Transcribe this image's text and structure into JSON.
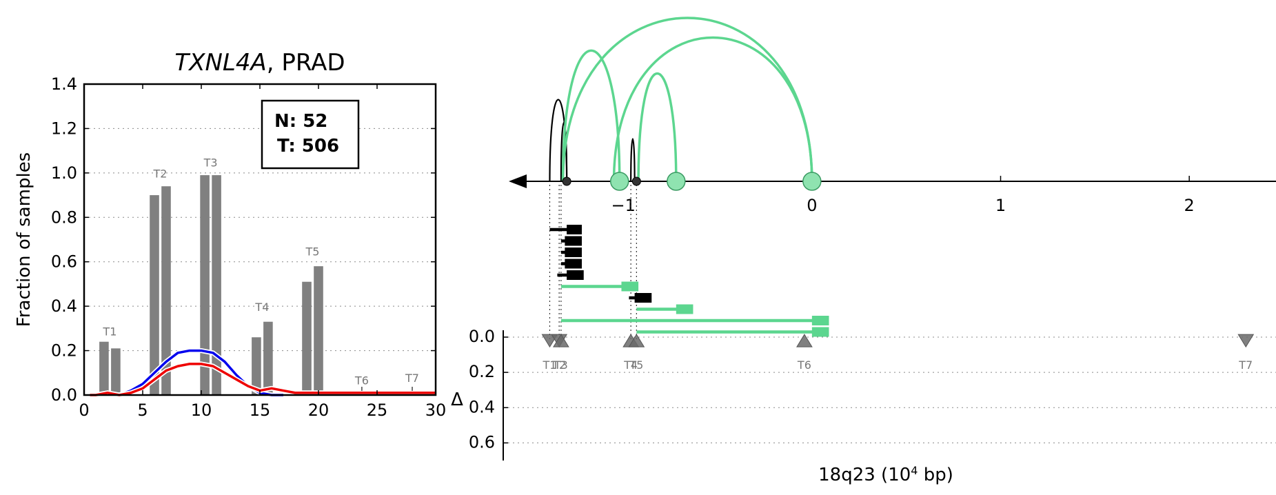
{
  "chart_data": [
    {
      "type": "bar",
      "title_gene": "TXNL4A",
      "title_rest": ", PRAD",
      "ylabel": "Fraction of samples",
      "xlim": [
        0,
        30
      ],
      "ylim": [
        0,
        1.4
      ],
      "xticks": [
        "0",
        "5",
        "10",
        "15",
        "20",
        "25",
        "30"
      ],
      "yticks": [
        "0.0",
        "0.2",
        "0.4",
        "0.6",
        "0.8",
        "1.0",
        "1.2",
        "1.4"
      ],
      "grid": true,
      "legend": {
        "n_label": "N: 52",
        "t_label": "T: 506",
        "placement": "top-right"
      },
      "bars": [
        {
          "x": 1.7,
          "value": 0.24
        },
        {
          "x": 2.7,
          "value": 0.21
        },
        {
          "x": 6.0,
          "value": 0.9
        },
        {
          "x": 7.0,
          "value": 0.94
        },
        {
          "x": 10.3,
          "value": 0.99
        },
        {
          "x": 11.3,
          "value": 0.99
        },
        {
          "x": 14.7,
          "value": 0.26
        },
        {
          "x": 15.7,
          "value": 0.33
        },
        {
          "x": 19.0,
          "value": 0.51
        },
        {
          "x": 20.0,
          "value": 0.58
        }
      ],
      "bar_color": "#808080",
      "group_labels": [
        {
          "label": "T1",
          "x": 2.2,
          "y": 0.25
        },
        {
          "label": "T2",
          "x": 6.5,
          "y": 0.96
        },
        {
          "label": "T3",
          "x": 10.8,
          "y": 1.01
        },
        {
          "label": "T4",
          "x": 15.2,
          "y": 0.36
        },
        {
          "label": "T5",
          "x": 19.5,
          "y": 0.61
        },
        {
          "label": "T6",
          "x": 23.7,
          "y": 0.03
        },
        {
          "label": "T7",
          "x": 28.0,
          "y": 0.04
        }
      ],
      "series": [
        {
          "color": "#0000ee",
          "x": [
            0.5,
            1,
            2,
            3,
            4,
            5,
            6,
            7,
            8,
            9,
            10,
            11,
            12,
            13,
            14,
            15,
            16,
            17
          ],
          "values": [
            0,
            0,
            0.01,
            0,
            0.02,
            0.05,
            0.1,
            0.15,
            0.19,
            0.2,
            0.2,
            0.19,
            0.15,
            0.09,
            0.04,
            0.01,
            0,
            0
          ]
        },
        {
          "color": "#ee0000",
          "x": [
            0.5,
            1,
            2,
            3,
            4,
            5,
            6,
            7,
            8,
            9,
            10,
            11,
            12,
            13,
            14,
            15,
            16,
            17,
            18,
            19,
            20,
            21,
            22,
            23,
            24,
            25,
            26,
            27,
            28,
            29,
            30
          ],
          "values": [
            0,
            0,
            0.01,
            0,
            0.01,
            0.03,
            0.07,
            0.11,
            0.13,
            0.14,
            0.14,
            0.13,
            0.1,
            0.07,
            0.04,
            0.02,
            0.03,
            0.02,
            0.01,
            0.01,
            0.01,
            0.01,
            0.01,
            0.01,
            0.01,
            0.01,
            0.01,
            0.01,
            0.01,
            0.01,
            0.01
          ]
        }
      ]
    },
    {
      "type": "scatter",
      "xlabel": "18q23 (10",
      "xlabel_sup": "4",
      "xlabel_tail": " bp)",
      "delta_label": "Δ",
      "xlim": [
        -1.6,
        2.5
      ],
      "xticks": [
        {
          "value": -1,
          "label": "−1"
        },
        {
          "value": 0,
          "label": "0"
        },
        {
          "value": 1,
          "label": "1"
        },
        {
          "value": 2,
          "label": "2"
        }
      ],
      "delta_yticks": [
        "0.0",
        "0.2",
        "0.4",
        "0.6"
      ],
      "colors": {
        "normal": "#000000",
        "tumor": "#5cd68f",
        "marker": "#6a6a6a",
        "tumor_fill": "#8fe3b0"
      },
      "arcs": [
        {
          "x1": -1.39,
          "x2": -1.3,
          "height": 0.5,
          "color": "#000000"
        },
        {
          "x1": -1.33,
          "x2": -1.3,
          "height": 0.36,
          "color": "#000000"
        },
        {
          "x1": -0.96,
          "x2": -0.94,
          "height": 0.26,
          "color": "#000000"
        },
        {
          "x1": -1.32,
          "x2": -1.02,
          "height": 0.8,
          "color": "#5cd68f"
        },
        {
          "x1": -1.32,
          "x2": 0.0,
          "height": 1.0,
          "color": "#5cd68f"
        },
        {
          "x1": -1.05,
          "x2": 0.0,
          "height": 0.88,
          "color": "#5cd68f"
        },
        {
          "x1": -0.92,
          "x2": -0.72,
          "height": 0.66,
          "color": "#5cd68f"
        }
      ],
      "junctions": [
        {
          "x": -1.3,
          "type": "small"
        },
        {
          "x": -0.93,
          "type": "small"
        },
        {
          "x": -1.02,
          "type": "large"
        },
        {
          "x": -0.72,
          "type": "large"
        },
        {
          "x": 0.0,
          "type": "large"
        }
      ],
      "transcripts": [
        {
          "x0": -1.39,
          "x1": -1.22,
          "exon": 0.08,
          "color": "#000000"
        },
        {
          "x0": -1.33,
          "x1": -1.22,
          "exon": 0.09,
          "color": "#000000"
        },
        {
          "x0": -1.33,
          "x1": -1.22,
          "exon": 0.09,
          "color": "#000000"
        },
        {
          "x0": -1.33,
          "x1": -1.22,
          "exon": 0.09,
          "color": "#000000"
        },
        {
          "x0": -1.35,
          "x1": -1.21,
          "exon": 0.09,
          "color": "#000000"
        },
        {
          "x0": -1.33,
          "x1": -0.92,
          "exon": 0.09,
          "color": "#5cd68f"
        },
        {
          "x0": -0.97,
          "x1": -0.85,
          "exon": 0.09,
          "color": "#000000"
        },
        {
          "x0": -0.93,
          "x1": -0.63,
          "exon": 0.09,
          "color": "#5cd68f"
        },
        {
          "x0": -1.33,
          "x1": 0.09,
          "exon": 0.09,
          "color": "#5cd68f"
        },
        {
          "x0": -0.93,
          "x1": 0.09,
          "exon": 0.09,
          "color": "#5cd68f"
        }
      ],
      "markers": [
        {
          "label": "T1",
          "x": -1.39,
          "dir": "down",
          "delta": 0.02
        },
        {
          "label": "T2",
          "x": -1.34,
          "dir": "down",
          "delta": 0.02
        },
        {
          "label": "T3",
          "x": -1.33,
          "dir": "up",
          "delta": 0.02
        },
        {
          "label": "T4",
          "x": -0.96,
          "dir": "up",
          "delta": 0.02
        },
        {
          "label": "T5",
          "x": -0.93,
          "dir": "up",
          "delta": 0.02
        },
        {
          "label": "T6",
          "x": -0.04,
          "dir": "up",
          "delta": 0.02
        },
        {
          "label": "T7",
          "x": 2.3,
          "dir": "down",
          "delta": 0.02
        }
      ]
    }
  ]
}
